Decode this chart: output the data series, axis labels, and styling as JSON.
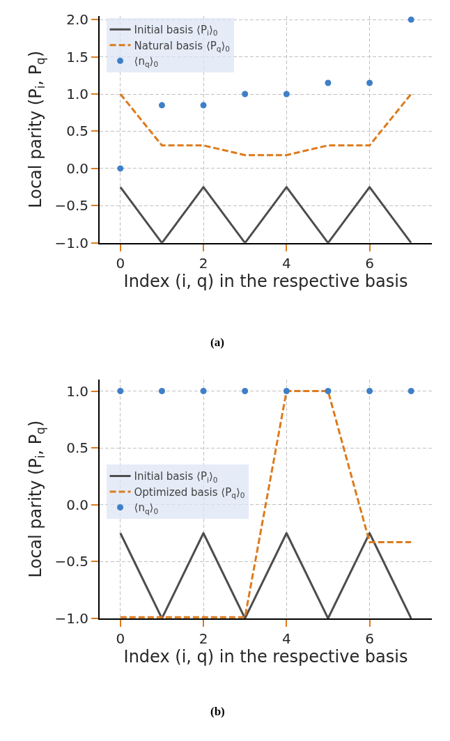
{
  "chart_data": [
    {
      "type": "line",
      "xlabel": "Index (i, q) in the respective basis",
      "ylabel": "Local parity (P$_{i}$, P$_{q}$)",
      "x": [
        0,
        1,
        2,
        3,
        4,
        5,
        6,
        7
      ],
      "xlim": [
        -0.5,
        7.5
      ],
      "xticks": [
        0,
        2,
        4,
        6
      ],
      "ylim": [
        -1.0,
        2.05
      ],
      "yticks": [
        {
          "value": -1.0,
          "label": "−1.0"
        },
        {
          "value": -0.5,
          "label": "−0.5"
        },
        {
          "value": 0.0,
          "label": "0.0"
        },
        {
          "value": 0.5,
          "label": "0.5"
        },
        {
          "value": 1.0,
          "label": "1.0"
        },
        {
          "value": 1.5,
          "label": "1.5"
        },
        {
          "value": 2.0,
          "label": "2.0"
        }
      ],
      "grid": true,
      "legend": "top left",
      "annotations": [
        "(a)"
      ],
      "series": [
        {
          "name": "Initial basis ⟨P$_{i}$⟩$_{0}$",
          "type": "line",
          "line_style": "solid",
          "color": "#4d4d4d",
          "values": [
            -0.25,
            -1.0,
            -0.25,
            -1.0,
            -0.25,
            -1.0,
            -0.25,
            -1.0
          ]
        },
        {
          "name": "Natural basis ⟨P$_{q}$⟩$_{0}$",
          "type": "line",
          "line_style": "dashed",
          "color": "#dd7a1c",
          "values": [
            1.0,
            0.31,
            0.31,
            0.18,
            0.18,
            0.31,
            0.31,
            1.0
          ]
        },
        {
          "name": "⟨n$_{q}$⟩$_{0}$",
          "type": "scatter",
          "marker": "circle",
          "color": "#3f7fc8",
          "values": [
            0.0,
            0.85,
            0.85,
            1.0,
            1.0,
            1.15,
            1.15,
            2.0
          ]
        }
      ]
    },
    {
      "type": "line",
      "xlabel": "Index (i, q) in the respective basis",
      "ylabel": "Local parity (P$_{i}$, P$_{q}$)",
      "x": [
        0,
        1,
        2,
        3,
        4,
        5,
        6,
        7
      ],
      "xlim": [
        -0.5,
        7.5
      ],
      "xticks": [
        0,
        2,
        4,
        6
      ],
      "ylim": [
        -1.0,
        1.1
      ],
      "yticks": [
        {
          "value": -1.0,
          "label": "−1.0"
        },
        {
          "value": -0.5,
          "label": "−0.5"
        },
        {
          "value": 0.0,
          "label": "0.0"
        },
        {
          "value": 0.5,
          "label": "0.5"
        },
        {
          "value": 1.0,
          "label": "1.0"
        }
      ],
      "grid": true,
      "legend": "left",
      "annotations": [
        "(b)"
      ],
      "series": [
        {
          "name": "Initial basis ⟨P$_{i}$⟩$_{0}$",
          "type": "line",
          "line_style": "solid",
          "color": "#4d4d4d",
          "values": [
            -0.25,
            -1.0,
            -0.25,
            -1.0,
            -0.25,
            -1.0,
            -0.25,
            -1.0
          ]
        },
        {
          "name": "Optimized basis ⟨P$_{q}$⟩$_{0}$",
          "type": "line",
          "line_style": "dashed",
          "color": "#dd7a1c",
          "values": [
            -0.99,
            -0.99,
            -0.99,
            -0.99,
            1.0,
            1.0,
            -0.33,
            -0.33
          ]
        },
        {
          "name": "⟨n$_{q}$⟩$_{0}$",
          "type": "scatter",
          "marker": "circle",
          "color": "#3f7fc8",
          "values": [
            1.0,
            1.0,
            1.0,
            1.0,
            1.0,
            1.0,
            1.0,
            1.0
          ]
        }
      ]
    }
  ]
}
